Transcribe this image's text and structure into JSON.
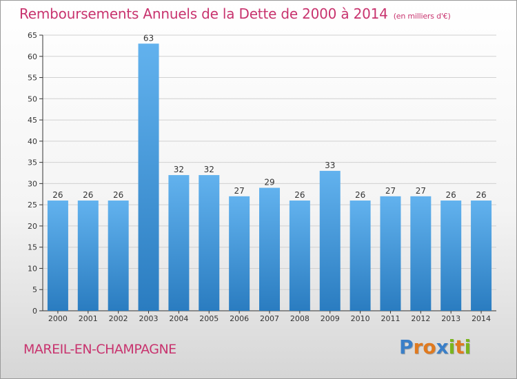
{
  "header": {
    "title": "Remboursements Annuels de la Dette de 2000 à 2014",
    "unit": "(en milliers d'€)"
  },
  "footer": {
    "commune": "MAREIL-EN-CHAMPAGNE",
    "logo_letters": [
      "P",
      "r",
      "o",
      "x",
      "i",
      "t",
      "i"
    ],
    "logo_colors": [
      "#3a7fc8",
      "#e07a1f",
      "#e07a1f",
      "#3a7fc8",
      "#7ab51d",
      "#e07a1f",
      "#7ab51d"
    ]
  },
  "colors": {
    "bar_light": "#62b2ee",
    "bar_dark": "#2a7cc0",
    "title": "#c8336e",
    "grid": "#d0d0d0",
    "axis": "#333333"
  },
  "chart_data": {
    "type": "bar",
    "title": "Remboursements Annuels de la Dette de 2000 à 2014",
    "unit": "(en milliers d'€)",
    "categories": [
      "2000",
      "2001",
      "2002",
      "2003",
      "2004",
      "2005",
      "2006",
      "2007",
      "2008",
      "2009",
      "2010",
      "2011",
      "2012",
      "2013",
      "2014"
    ],
    "values": [
      26,
      26,
      26,
      63,
      32,
      32,
      27,
      29,
      26,
      33,
      26,
      27,
      27,
      26,
      26
    ],
    "ylim": [
      0,
      65
    ],
    "yticks": [
      0,
      5,
      10,
      15,
      20,
      25,
      30,
      35,
      40,
      45,
      50,
      55,
      60,
      65
    ],
    "grid": true,
    "data_labels": true
  }
}
